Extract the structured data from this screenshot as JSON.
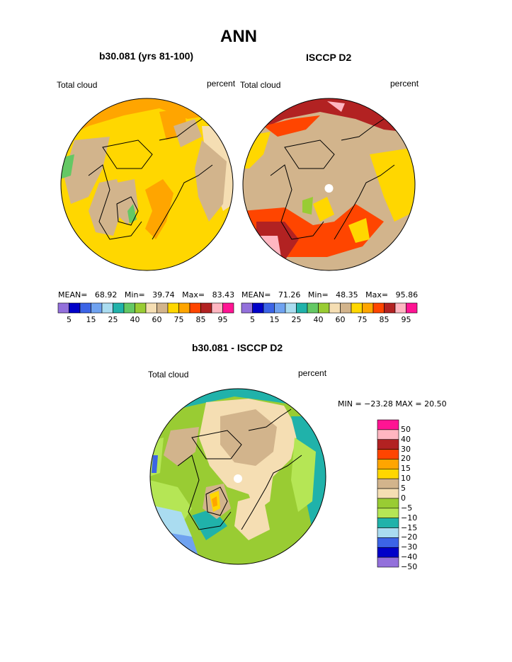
{
  "page": {
    "title": "ANN",
    "diff_title": "b30.081 - ISCCP D2"
  },
  "panels": [
    {
      "name": "model",
      "subtitle": "b30.081 (yrs 81-100)",
      "left_label": "Total cloud",
      "right_label": "percent",
      "stats": {
        "mean_label": "MEAN=",
        "mean": "68.92",
        "min_label": "Min=",
        "min": "39.74",
        "max_label": "Max=",
        "max": "83.43"
      }
    },
    {
      "name": "obs",
      "subtitle": "ISCCP D2",
      "left_label": "Total cloud",
      "right_label": "percent",
      "stats": {
        "mean_label": "MEAN=",
        "mean": "71.26",
        "min_label": "Min=",
        "min": "48.35",
        "max_label": "Max=",
        "max": "95.86"
      }
    }
  ],
  "diff_panel": {
    "left_label": "Total cloud",
    "right_label": "percent",
    "minmax": "MIN = −23.28 MAX =  20.50"
  },
  "colorbar_top": {
    "colors": [
      "#9370db",
      "#0000c8",
      "#3c64e6",
      "#6fa2f0",
      "#aadcf0",
      "#20b2aa",
      "#64c864",
      "#99cc33",
      "#f5deb3",
      "#d2b48c",
      "#ffd700",
      "#ffa500",
      "#ff4500",
      "#b22222",
      "#ffb6c1",
      "#ff1493"
    ],
    "tick_labels": [
      "5",
      "15",
      "25",
      "40",
      "60",
      "75",
      "85",
      "95"
    ]
  },
  "colorbar_diff": {
    "colors": [
      "#ff1493",
      "#ffb6c1",
      "#b22222",
      "#ff4500",
      "#ffa500",
      "#ffd700",
      "#d2b48c",
      "#f5deb3",
      "#99cc33",
      "#b5e655",
      "#20b2aa",
      "#aadcf0",
      "#3c64e6",
      "#0000c8",
      "#9370db"
    ],
    "tick_labels": [
      "50",
      "40",
      "30",
      "20",
      "15",
      "10",
      "5",
      "0",
      "−5",
      "−10",
      "−15",
      "−20",
      "−30",
      "−40",
      "−50"
    ]
  }
}
